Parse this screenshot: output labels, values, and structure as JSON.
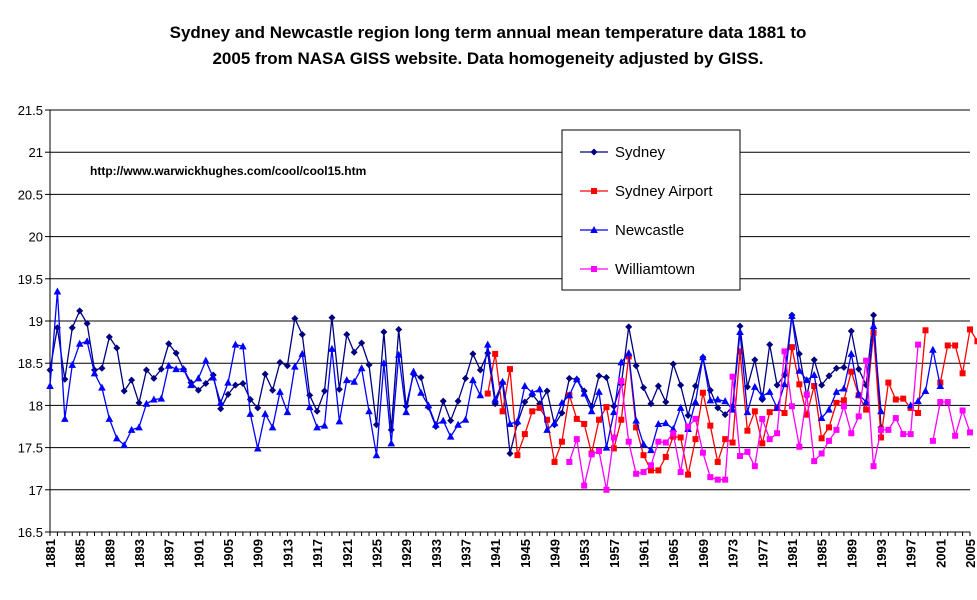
{
  "chart_data": {
    "type": "line",
    "title": "Sydney and Newcastle region long term annual mean temperature data 1881 to",
    "subtitle": "2005 from NASA GISS website.  Data homogeneity adjusted by GISS.",
    "annotation": "http://www.warwickhughes.com/cool/cool15.htm",
    "xlabel": "",
    "ylabel": "",
    "xlim": [
      1881,
      2005
    ],
    "ylim": [
      16.5,
      21.5
    ],
    "yticks": [
      "16.5",
      "17",
      "17.5",
      "18",
      "18.5",
      "19",
      "19.5",
      "20",
      "20.5",
      "21",
      "21.5"
    ],
    "xticks": [
      "1881",
      "1885",
      "1889",
      "1893",
      "1897",
      "1901",
      "1905",
      "1909",
      "1913",
      "1917",
      "1921",
      "1925",
      "1929",
      "1933",
      "1937",
      "1941",
      "1945",
      "1949",
      "1953",
      "1957",
      "1961",
      "1965",
      "1969",
      "1973",
      "1977",
      "1981",
      "1985",
      "1989",
      "1993",
      "1997",
      "2001",
      "2005"
    ],
    "grid": "horizontal",
    "legend_position": "top-right",
    "series": [
      {
        "name": "Sydney",
        "color": "#000080",
        "marker": "diamond",
        "start": 1881,
        "values": [
          18.42,
          18.92,
          18.31,
          18.92,
          19.12,
          18.97,
          18.42,
          18.44,
          18.81,
          18.68,
          18.17,
          18.3,
          18.03,
          18.42,
          18.32,
          18.43,
          18.73,
          18.62,
          18.43,
          18.27,
          18.18,
          18.26,
          18.36,
          17.96,
          18.13,
          18.24,
          18.26,
          18.07,
          17.97,
          18.37,
          18.18,
          18.51,
          18.47,
          19.03,
          18.84,
          18.12,
          17.93,
          18.17,
          19.04,
          18.19,
          18.84,
          18.63,
          18.74,
          18.48,
          17.77,
          18.87,
          17.71,
          18.9,
          17.99,
          18.37,
          18.33,
          17.98,
          17.75,
          18.05,
          17.82,
          18.05,
          18.32,
          18.61,
          18.42,
          18.62,
          18.02,
          18.27,
          17.43,
          17.79,
          18.04,
          18.13,
          18.02,
          18.17,
          17.77,
          17.91,
          18.32,
          18.31,
          18.17,
          17.99,
          18.35,
          18.33,
          17.99,
          18.25,
          18.93,
          18.47,
          18.21,
          18.02,
          18.23,
          18.04,
          18.49,
          18.24,
          17.88,
          18.23,
          18.57,
          18.18,
          17.97,
          17.89,
          17.99,
          18.94,
          18.22,
          18.54,
          18.07,
          18.72,
          18.24,
          18.36,
          19.07,
          18.61,
          18.11,
          18.54,
          18.24,
          18.35,
          18.44,
          18.45,
          18.88,
          18.43,
          18.24,
          19.07,
          17.74,
          null,
          null,
          null,
          null,
          null,
          null,
          null,
          null,
          null,
          null,
          null,
          null
        ]
      },
      {
        "name": "Sydney Airport",
        "color": "#ff0000",
        "marker": "square",
        "start": 1940,
        "values": [
          18.14,
          18.61,
          17.93,
          18.43,
          17.41,
          17.66,
          17.93,
          17.97,
          17.83,
          17.33,
          17.57,
          18.12,
          17.84,
          17.78,
          17.43,
          17.83,
          17.98,
          17.49,
          17.83,
          18.58,
          17.74,
          17.41,
          17.23,
          17.23,
          17.39,
          17.63,
          17.62,
          17.18,
          17.6,
          18.15,
          17.76,
          17.33,
          17.6,
          17.56,
          18.64,
          17.7,
          17.93,
          17.55,
          17.92,
          17.97,
          17.91,
          18.69,
          18.25,
          17.89,
          18.23,
          17.61,
          17.74,
          18.03,
          18.06,
          18.4,
          18.12,
          17.95,
          18.86,
          17.62,
          18.27,
          18.07,
          18.08,
          17.97,
          17.91,
          18.89,
          null,
          18.27,
          18.71,
          18.71,
          18.38,
          18.9,
          18.76
        ]
      },
      {
        "name": "Newcastle",
        "color": "#0000ff",
        "marker": "triangle",
        "start": 1881,
        "values": [
          18.23,
          19.35,
          17.84,
          18.48,
          18.73,
          18.76,
          18.38,
          18.21,
          17.84,
          17.61,
          17.53,
          17.71,
          17.74,
          18.02,
          18.07,
          18.08,
          18.47,
          18.43,
          18.43,
          18.24,
          18.32,
          18.53,
          18.33,
          18.03,
          18.27,
          18.72,
          18.7,
          17.9,
          17.49,
          17.9,
          17.74,
          18.16,
          17.92,
          18.46,
          18.61,
          17.98,
          17.74,
          17.76,
          18.67,
          17.81,
          18.3,
          18.28,
          18.44,
          17.93,
          17.41,
          18.5,
          17.55,
          18.6,
          17.92,
          18.4,
          18.15,
          18.0,
          17.77,
          17.82,
          17.63,
          17.77,
          17.83,
          18.3,
          18.12,
          18.72,
          18.07,
          18.28,
          17.78,
          17.81,
          18.23,
          18.15,
          18.19,
          17.71,
          17.79,
          18.03,
          18.12,
          18.31,
          18.14,
          17.93,
          18.16,
          17.5,
          17.92,
          18.51,
          18.62,
          17.82,
          17.54,
          17.47,
          17.78,
          17.79,
          17.72,
          17.97,
          17.72,
          18.04,
          18.57,
          18.06,
          18.07,
          18.05,
          17.95,
          18.87,
          17.92,
          18.22,
          18.11,
          18.16,
          17.97,
          18.25,
          19.06,
          18.41,
          18.3,
          18.36,
          17.85,
          17.95,
          18.16,
          18.2,
          18.61,
          18.13,
          18.04,
          18.94,
          17.93,
          null,
          null,
          null,
          18.0,
          18.05,
          18.17,
          18.66,
          18.23
        ]
      },
      {
        "name": "Williamtown",
        "color": "#ff00ff",
        "marker": "square",
        "start": 1951,
        "values": [
          17.33,
          17.6,
          17.05,
          17.42,
          17.46,
          17.0,
          17.62,
          18.29,
          17.57,
          17.19,
          17.21,
          17.29,
          17.57,
          17.56,
          17.67,
          17.21,
          17.75,
          17.84,
          17.44,
          17.15,
          17.12,
          17.12,
          18.34,
          17.4,
          17.45,
          17.28,
          17.84,
          17.6,
          17.67,
          18.64,
          17.99,
          17.51,
          18.13,
          17.34,
          17.43,
          17.58,
          17.71,
          17.99,
          17.67,
          17.87,
          18.53,
          17.28,
          17.71,
          17.71,
          17.85,
          17.66,
          17.66,
          18.72,
          null,
          17.58,
          18.04,
          18.04,
          17.64,
          17.94,
          17.68
        ]
      }
    ]
  }
}
